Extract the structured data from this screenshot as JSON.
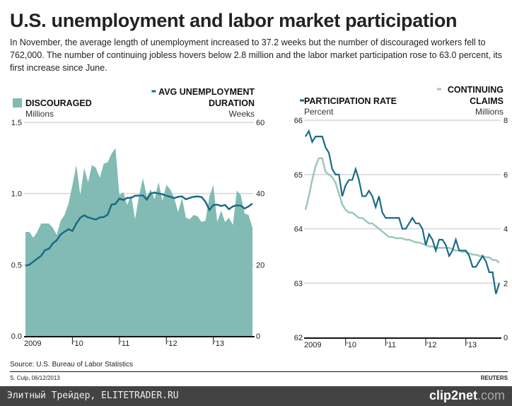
{
  "title": "U.S. unemployment and labor market participation",
  "subtitle": "In November, the average length of unemployment increased to 37.2 weeks but the number of discouraged workers fell to 762,000. The number of continuing jobless hovers below 2.8 million and the labor market participation rose to 63.0 percent, its first increase since June.",
  "source": "Source: U.S. Bureau of Labor Statistics",
  "credit": "S. Culp, 06/12/2013",
  "brand": "REUTERS",
  "watermark": "Элитный Трейдер, ELITETRADER.RU",
  "clip_logo": {
    "main": "clip2net",
    ".com": ".com"
  },
  "colors": {
    "discouraged": "#81bbb4",
    "duration": "#1a6b85",
    "participation": "#1a6b85",
    "claims": "#9cc7bf"
  },
  "chart_data": [
    {
      "type": "area+line",
      "x_ticks": [
        "2009",
        "'10",
        "'11",
        "'12",
        "'13"
      ],
      "x_start": "2009-01",
      "x_end": "2013-11",
      "frequency": "monthly",
      "left": {
        "name": "DISCOURAGED",
        "unit": "Millions",
        "ylim": [
          0,
          1.5
        ],
        "ticks": [
          "0.0",
          "0.5",
          "1.0",
          "1.5"
        ],
        "values": [
          0.73,
          0.73,
          0.69,
          0.73,
          0.79,
          0.79,
          0.79,
          0.76,
          0.71,
          0.81,
          0.85,
          0.93,
          1.06,
          1.2,
          0.99,
          1.18,
          1.08,
          1.2,
          1.18,
          1.11,
          1.21,
          1.22,
          1.28,
          1.32,
          0.99,
          1.01,
          0.92,
          0.99,
          0.82,
          0.98,
          1.11,
          0.98,
          1.03,
          0.96,
          1.08,
          0.95,
          1.06,
          1.03,
          0.97,
          0.87,
          0.97,
          0.83,
          0.82,
          0.85,
          0.84,
          0.8,
          0.81,
          0.98,
          1.06,
          0.8,
          0.88,
          0.8,
          0.83,
          0.78,
          1.02,
          0.99,
          0.86,
          0.85,
          0.76
        ]
      },
      "right": {
        "name_1": "AVG UNEMPLOYMENT",
        "name_2": "DURATION",
        "unit": "Weeks",
        "ylim": [
          0,
          60
        ],
        "ticks": [
          "0",
          "20",
          "40",
          "60"
        ],
        "values": [
          19.8,
          20.0,
          20.9,
          21.7,
          22.5,
          24.1,
          24.5,
          26.0,
          26.9,
          28.5,
          29.3,
          30.0,
          29.5,
          31.6,
          33.2,
          33.9,
          33.3,
          33.0,
          32.7,
          33.3,
          33.4,
          34.1,
          36.9,
          37.1,
          38.6,
          38.2,
          38.8,
          38.8,
          39.4,
          39.4,
          39.5,
          38.3,
          40.0,
          40.3,
          40.0,
          39.8,
          39.4,
          39.1,
          38.7,
          39.1,
          39.2,
          38.4,
          38.8,
          39.1,
          39.2,
          39.0,
          37.7,
          35.4,
          36.8,
          36.9,
          36.5,
          36.8,
          35.6,
          36.4,
          36.7,
          36.6,
          35.8,
          36.4,
          37.2
        ]
      }
    },
    {
      "type": "line",
      "x_ticks": [
        "2009",
        "'10",
        "'11",
        "'12",
        "'13"
      ],
      "x_start": "2009-01",
      "x_end": "2013-11",
      "frequency": "monthly",
      "left": {
        "name": "PARTICIPATION RATE",
        "unit": "Percent",
        "ylim": [
          62,
          66
        ],
        "ticks": [
          "62",
          "63",
          "64",
          "65",
          "66"
        ],
        "values": [
          65.7,
          65.8,
          65.6,
          65.7,
          65.7,
          65.7,
          65.5,
          65.4,
          65.1,
          65.0,
          65.0,
          64.6,
          64.8,
          64.9,
          64.9,
          65.1,
          64.9,
          64.6,
          64.6,
          64.7,
          64.6,
          64.4,
          64.6,
          64.3,
          64.2,
          64.2,
          64.2,
          64.2,
          64.2,
          64.0,
          64.0,
          64.1,
          64.2,
          64.1,
          64.1,
          64.0,
          63.7,
          63.9,
          63.8,
          63.6,
          63.8,
          63.8,
          63.7,
          63.5,
          63.6,
          63.8,
          63.6,
          63.6,
          63.6,
          63.5,
          63.3,
          63.3,
          63.4,
          63.5,
          63.4,
          63.2,
          63.2,
          62.8,
          63.0
        ]
      },
      "right": {
        "name_1": "CONTINUING",
        "name_2": "CLAIMS",
        "unit": "Millions",
        "ylim": [
          0,
          8
        ],
        "ticks": [
          "0",
          "2",
          "4",
          "6",
          "8"
        ],
        "values": [
          4.7,
          5.2,
          5.8,
          6.3,
          6.6,
          6.6,
          6.1,
          6.0,
          5.9,
          5.7,
          5.3,
          4.9,
          4.7,
          4.6,
          4.6,
          4.5,
          4.4,
          4.4,
          4.3,
          4.2,
          4.2,
          4.1,
          4.0,
          3.9,
          3.8,
          3.7,
          3.7,
          3.65,
          3.65,
          3.65,
          3.6,
          3.6,
          3.55,
          3.5,
          3.5,
          3.45,
          3.4,
          3.35,
          3.35,
          3.3,
          3.3,
          3.3,
          3.3,
          3.3,
          3.25,
          3.2,
          3.2,
          3.15,
          3.15,
          3.1,
          3.05,
          3.05,
          3.0,
          3.0,
          2.95,
          2.95,
          2.85,
          2.85,
          2.75
        ]
      }
    }
  ]
}
